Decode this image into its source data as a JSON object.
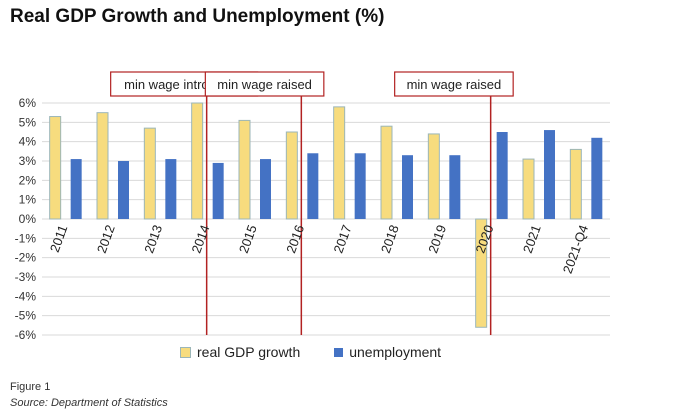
{
  "chart_data": {
    "type": "bar",
    "title": "Real GDP Growth and Unemployment (%)",
    "categories": [
      "2011",
      "2012",
      "2013",
      "2014",
      "2015",
      "2016",
      "2017",
      "2018",
      "2019",
      "2020",
      "2021",
      "2021-Q4"
    ],
    "series": [
      {
        "name": "real GDP growth",
        "values": [
          5.3,
          5.5,
          4.7,
          6.0,
          5.1,
          4.5,
          5.8,
          4.8,
          4.4,
          -5.6,
          3.1,
          3.6
        ],
        "color": "#f7dc7e",
        "outline": "#9bb6b8"
      },
      {
        "name": "unemployment",
        "values": [
          3.1,
          3.0,
          3.1,
          2.9,
          3.1,
          3.4,
          3.4,
          3.3,
          3.3,
          4.5,
          4.6,
          4.2
        ],
        "color": "#4472c4"
      }
    ],
    "ylim": [
      -6,
      6
    ],
    "yticks": [
      "-6%",
      "-5%",
      "-4%",
      "-3%",
      "-2%",
      "-1%",
      "0%",
      "1%",
      "2%",
      "3%",
      "4%",
      "5%",
      "6%"
    ],
    "grid": true,
    "legend": "bottom",
    "annotations": [
      {
        "text": "min wage introduced",
        "category": "2014",
        "color": "#b22222"
      },
      {
        "text": "min wage raised",
        "category": "2016",
        "color": "#b22222"
      },
      {
        "text": "min wage raised",
        "category": "2020",
        "color": "#b22222"
      }
    ]
  },
  "figure": {
    "label": "Figure 1",
    "source": "Source: Department of Statistics"
  }
}
